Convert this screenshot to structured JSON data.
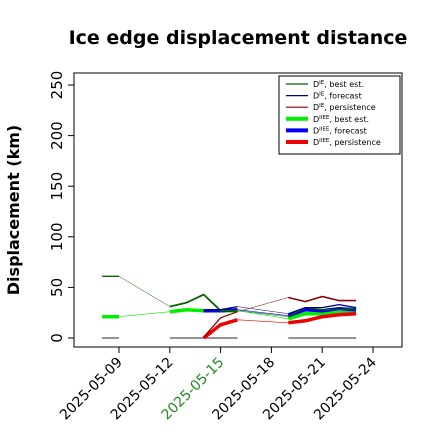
{
  "chart_data": {
    "type": "line",
    "title": "Ice edge displacement distance",
    "ylabel": "Displacement (km)",
    "xlabel": "",
    "ylim": [
      0,
      260
    ],
    "xlim": [
      "2025-05-06",
      "2025-05-25"
    ],
    "yticks": [
      "0",
      "50",
      "100",
      "150",
      "200",
      "250"
    ],
    "xticks": [
      {
        "date": "2025-05-09",
        "label": "2025-05-09",
        "color": "#000000"
      },
      {
        "date": "2025-05-12",
        "label": "2025-05-12",
        "color": "#000000"
      },
      {
        "date": "2025-05-15",
        "label": "2025-05-15",
        "color": "#228b22"
      },
      {
        "date": "2025-05-18",
        "label": "2025-05-18",
        "color": "#000000"
      },
      {
        "date": "2025-05-21",
        "label": "2025-05-21",
        "color": "#000000"
      },
      {
        "date": "2025-05-24",
        "label": "2025-05-24",
        "color": "#000000"
      }
    ],
    "legend_position": "top-right",
    "legend": [
      {
        "base": "D",
        "sup": "IE",
        "suffix": ", best est.",
        "color": "#006400",
        "width": 1.2
      },
      {
        "base": "D",
        "sup": "IE",
        "suffix": ", forecast",
        "color": "#00008b",
        "width": 1.2
      },
      {
        "base": "D",
        "sup": "IE",
        "suffix": ", persistence",
        "color": "#8b0000",
        "width": 1.2
      },
      {
        "base": "D",
        "sup": "IIEE",
        "suffix": ", best est.",
        "color": "#00ee00",
        "width": 4
      },
      {
        "base": "D",
        "sup": "IIEE",
        "suffix": ", forecast",
        "color": "#0000ee",
        "width": 4
      },
      {
        "base": "D",
        "sup": "IIEE",
        "suffix": ", persistence",
        "color": "#ee0000",
        "width": 4
      }
    ],
    "series": [
      {
        "key": "ie_best",
        "color": "#006400",
        "width": 1.3,
        "points": [
          [
            "2025-05-08",
            61
          ],
          [
            "2025-05-09",
            61
          ]
        ]
      },
      {
        "key": "ie_best",
        "color": "#006400",
        "width": 1.8,
        "points": [
          [
            "2025-05-12",
            31
          ],
          [
            "2025-05-13",
            35
          ],
          [
            "2025-05-14",
            43
          ],
          [
            "2025-05-15",
            27
          ],
          [
            "2025-05-16",
            27
          ]
        ]
      },
      {
        "key": "ie_best",
        "color": "#006400",
        "width": 1.3,
        "points": [
          [
            "2025-05-19",
            21
          ],
          [
            "2025-05-20",
            30
          ],
          [
            "2025-05-21",
            28
          ],
          [
            "2025-05-22",
            28
          ],
          [
            "2025-05-23",
            29
          ]
        ]
      },
      {
        "key": "ie_best_connector",
        "color": "#006400",
        "width": 0.5,
        "points": [
          [
            "2025-05-09",
            61
          ],
          [
            "2025-05-12",
            31
          ]
        ]
      },
      {
        "key": "ie_best_connector",
        "color": "#006400",
        "width": 0.5,
        "points": [
          [
            "2025-05-16",
            27
          ],
          [
            "2025-05-19",
            21
          ]
        ]
      },
      {
        "key": "ie_forecast",
        "color": "#00008b",
        "width": 1.3,
        "points": [
          [
            "2025-05-14",
            27
          ],
          [
            "2025-05-15",
            28
          ],
          [
            "2025-05-16",
            31
          ]
        ]
      },
      {
        "key": "ie_forecast",
        "color": "#00008b",
        "width": 1.3,
        "points": [
          [
            "2025-05-19",
            24
          ],
          [
            "2025-05-20",
            30
          ],
          [
            "2025-05-21",
            30
          ],
          [
            "2025-05-22",
            33
          ],
          [
            "2025-05-23",
            30
          ]
        ]
      },
      {
        "key": "ie_forecast_connector",
        "color": "#00008b",
        "width": 0.5,
        "points": [
          [
            "2025-05-16",
            31
          ],
          [
            "2025-05-19",
            24
          ]
        ]
      },
      {
        "key": "ie_persistence",
        "color": "#8b0000",
        "width": 1.3,
        "points": [
          [
            "2025-05-14",
            1
          ],
          [
            "2025-05-15",
            20
          ],
          [
            "2025-05-16",
            26
          ]
        ]
      },
      {
        "key": "ie_persistence",
        "color": "#8b0000",
        "width": 1.6,
        "points": [
          [
            "2025-05-19",
            40
          ],
          [
            "2025-05-20",
            36
          ],
          [
            "2025-05-21",
            41
          ],
          [
            "2025-05-22",
            37
          ],
          [
            "2025-05-23",
            37
          ]
        ]
      },
      {
        "key": "ie_persistence_connector",
        "color": "#8b0000",
        "width": 0.5,
        "points": [
          [
            "2025-05-16",
            26
          ],
          [
            "2025-05-19",
            40
          ]
        ]
      },
      {
        "key": "iiee_best",
        "color": "#00ee00",
        "width": 3.5,
        "points": [
          [
            "2025-05-08",
            21
          ],
          [
            "2025-05-09",
            21
          ]
        ]
      },
      {
        "key": "iiee_best",
        "color": "#00ee00",
        "width": 3.5,
        "points": [
          [
            "2025-05-12",
            26
          ],
          [
            "2025-05-13",
            28
          ],
          [
            "2025-05-14",
            27
          ],
          [
            "2025-05-15",
            27
          ],
          [
            "2025-05-16",
            27
          ]
        ]
      },
      {
        "key": "iiee_best",
        "color": "#00ee00",
        "width": 3.5,
        "points": [
          [
            "2025-05-19",
            19
          ],
          [
            "2025-05-20",
            24
          ],
          [
            "2025-05-21",
            24
          ],
          [
            "2025-05-22",
            25
          ],
          [
            "2025-05-23",
            25
          ]
        ]
      },
      {
        "key": "iiee_best_connector",
        "color": "#00ee00",
        "width": 0.6,
        "points": [
          [
            "2025-05-09",
            21
          ],
          [
            "2025-05-12",
            26
          ]
        ]
      },
      {
        "key": "iiee_best_connector",
        "color": "#00ee00",
        "width": 0.6,
        "points": [
          [
            "2025-05-16",
            27
          ],
          [
            "2025-05-19",
            19
          ]
        ]
      },
      {
        "key": "iiee_forecast",
        "color": "#0000ee",
        "width": 3.5,
        "points": [
          [
            "2025-05-14",
            27
          ],
          [
            "2025-05-15",
            27
          ],
          [
            "2025-05-16",
            28
          ]
        ]
      },
      {
        "key": "iiee_forecast",
        "color": "#0000ee",
        "width": 3.5,
        "points": [
          [
            "2025-05-19",
            22
          ],
          [
            "2025-05-20",
            28
          ],
          [
            "2025-05-21",
            27
          ],
          [
            "2025-05-22",
            29
          ],
          [
            "2025-05-23",
            28
          ]
        ]
      },
      {
        "key": "iiee_forecast_connector",
        "color": "#0000ee",
        "width": 0.6,
        "points": [
          [
            "2025-05-16",
            28
          ],
          [
            "2025-05-19",
            22
          ]
        ]
      },
      {
        "key": "iiee_persistence",
        "color": "#ee0000",
        "width": 3.5,
        "points": [
          [
            "2025-05-14",
            0
          ],
          [
            "2025-05-15",
            13
          ],
          [
            "2025-05-16",
            18
          ]
        ]
      },
      {
        "key": "iiee_persistence",
        "color": "#ee0000",
        "width": 3.5,
        "points": [
          [
            "2025-05-19",
            15
          ],
          [
            "2025-05-20",
            17
          ],
          [
            "2025-05-21",
            21
          ],
          [
            "2025-05-22",
            23
          ],
          [
            "2025-05-23",
            24
          ]
        ]
      },
      {
        "key": "iiee_persistence_connector",
        "color": "#ee0000",
        "width": 0.6,
        "points": [
          [
            "2025-05-16",
            18
          ],
          [
            "2025-05-19",
            15
          ]
        ]
      },
      {
        "key": "missing_gap",
        "color": "#555555",
        "width": 1.2,
        "points": [
          [
            "2025-05-08",
            0
          ],
          [
            "2025-05-09",
            0
          ]
        ]
      },
      {
        "key": "missing_gap",
        "color": "#555555",
        "width": 1.2,
        "points": [
          [
            "2025-05-12",
            0
          ],
          [
            "2025-05-16",
            0
          ]
        ]
      },
      {
        "key": "missing_gap",
        "color": "#555555",
        "width": 1.2,
        "points": [
          [
            "2025-05-19",
            0
          ],
          [
            "2025-05-23",
            0
          ]
        ]
      }
    ]
  }
}
